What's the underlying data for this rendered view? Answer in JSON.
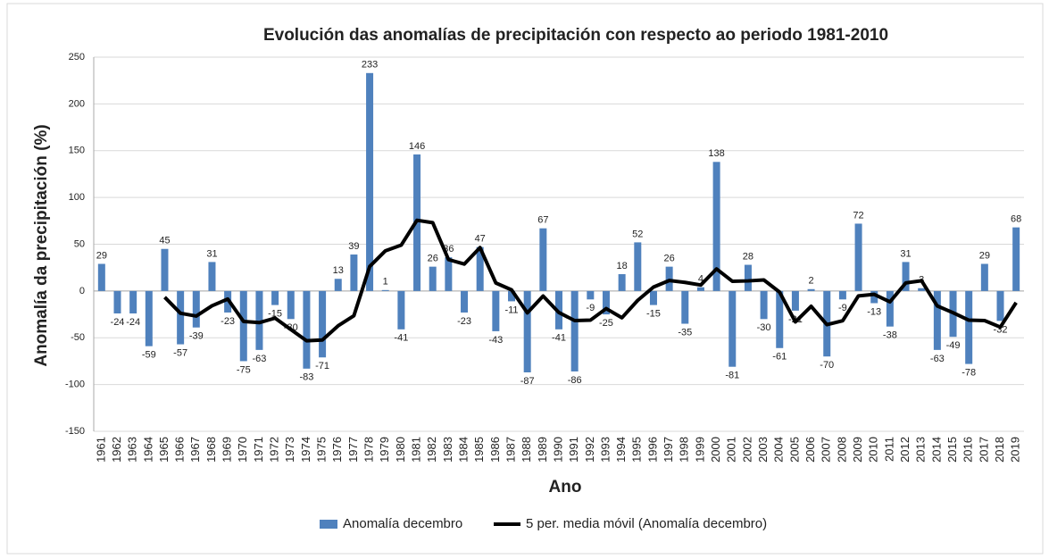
{
  "chart_data": {
    "type": "bar",
    "title": "Evolución das anomalías de precipitación con respecto ao periodo 1981-2010",
    "x_label": "Ano",
    "y_label": "Anomalía da precipitación (%)",
    "categories": [
      "1961",
      "1962",
      "1963",
      "1964",
      "1965",
      "1966",
      "1967",
      "1968",
      "1969",
      "1970",
      "1971",
      "1972",
      "1973",
      "1974",
      "1975",
      "1976",
      "1977",
      "1978",
      "1979",
      "1980",
      "1981",
      "1982",
      "1983",
      "1984",
      "1985",
      "1986",
      "1987",
      "1988",
      "1989",
      "1990",
      "1991",
      "1992",
      "1993",
      "1994",
      "1995",
      "1996",
      "1997",
      "1998",
      "1999",
      "2000",
      "2001",
      "2002",
      "2003",
      "2004",
      "2005",
      "2006",
      "2007",
      "2008",
      "2009",
      "2010",
      "2011",
      "2012",
      "2013",
      "2014",
      "2015",
      "2016",
      "2017",
      "2018",
      "2019"
    ],
    "series": [
      {
        "name": "Anomalía decembro",
        "type": "bar",
        "color": "#4f81bd",
        "values": [
          29,
          -24,
          -24,
          -59,
          45,
          -57,
          -39,
          31,
          -23,
          -75,
          -63,
          -15,
          -30,
          -83,
          -71,
          13,
          39,
          233,
          1,
          -41,
          146,
          26,
          36,
          -23,
          47,
          -43,
          -11,
          -87,
          67,
          -41,
          -86,
          -9,
          -25,
          18,
          52,
          -15,
          26,
          -35,
          4,
          138,
          -81,
          28,
          -30,
          -61,
          -21,
          2,
          -70,
          -9,
          72,
          -13,
          -38,
          31,
          3,
          -63,
          -49,
          -78,
          29,
          -32,
          68
        ]
      },
      {
        "name": "5 per. media móvil (Anomalía decembro)",
        "type": "line",
        "color": "#000000",
        "values": [
          null,
          null,
          null,
          null,
          -6.6,
          -23.8,
          -26.8,
          -15.8,
          -8.6,
          -32.6,
          -33.8,
          -29,
          -41.2,
          -53.2,
          -52.4,
          -37.2,
          -26.4,
          26.2,
          43,
          49,
          75.6,
          73,
          33.6,
          28.8,
          46.4,
          8.6,
          1.2,
          -23.4,
          -5.4,
          -23,
          -31.6,
          -31.2,
          -18.8,
          -28.6,
          -10,
          4.2,
          11.2,
          9.2,
          6.4,
          23.6,
          10.4,
          10.8,
          11.8,
          -1.2,
          -33,
          -16.4,
          -36,
          -31.8,
          -5.2,
          -3.6,
          -11.6,
          8.6,
          11,
          -16,
          -23.2,
          -31.2,
          -31.6,
          -38.6,
          -12.4
        ]
      }
    ],
    "ylim": [
      -150,
      250
    ],
    "yticks": [
      -150,
      -100,
      -50,
      0,
      50,
      100,
      150,
      200,
      250
    ],
    "grid": true,
    "legend": "bottom"
  }
}
